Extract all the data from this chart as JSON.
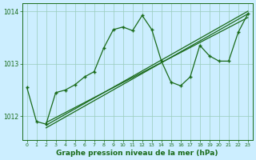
{
  "bg_color": "#cceeff",
  "line_color": "#1a6b1a",
  "grid_color": "#99ccbb",
  "xlabel": "Graphe pression niveau de la mer (hPa)",
  "xlim": [
    -0.5,
    23.5
  ],
  "ylim": [
    1011.55,
    1014.15
  ],
  "yticks": [
    1012,
    1013,
    1014
  ],
  "xticks": [
    0,
    1,
    2,
    3,
    4,
    5,
    6,
    7,
    8,
    9,
    10,
    11,
    12,
    13,
    14,
    15,
    16,
    17,
    18,
    19,
    20,
    21,
    22,
    23
  ],
  "series1": [
    1012.55,
    1011.9,
    1011.85,
    1012.45,
    1012.5,
    1012.6,
    1012.75,
    1012.85,
    1013.3,
    1013.65,
    1013.7,
    1013.63,
    1013.92,
    1013.65,
    1013.05,
    1012.65,
    1012.58,
    1012.75,
    1013.35,
    1013.15,
    1013.05,
    1013.05,
    1013.6,
    1013.95
  ],
  "trend1_x": [
    2,
    23
  ],
  "trend1_y": [
    1011.78,
    1013.95
  ],
  "trend2_x": [
    2,
    23
  ],
  "trend2_y": [
    1011.83,
    1014.0
  ],
  "trend3_x": [
    2,
    23
  ],
  "trend3_y": [
    1011.88,
    1013.88
  ]
}
